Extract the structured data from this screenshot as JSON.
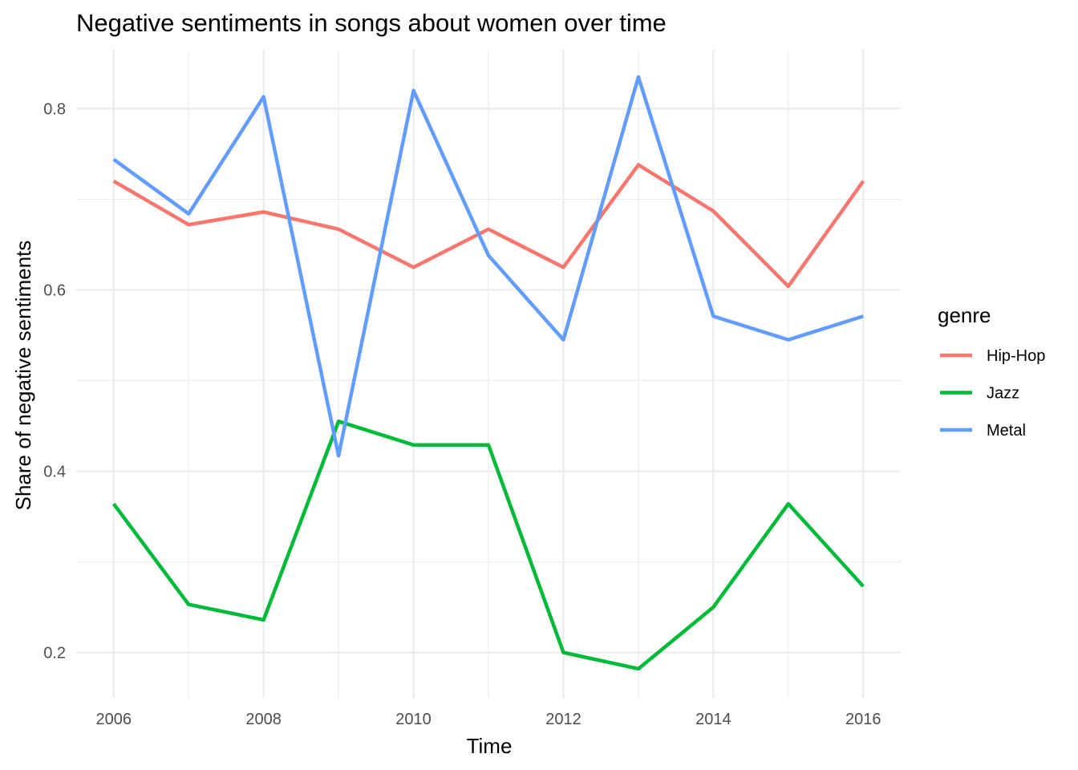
{
  "chart_data": {
    "type": "line",
    "title": "Negative sentiments in songs about women over time",
    "xlabel": "Time",
    "ylabel": "Share of negative sentiments",
    "x": [
      2006,
      2007,
      2008,
      2009,
      2010,
      2011,
      2012,
      2013,
      2014,
      2015,
      2016
    ],
    "xlim": [
      2005.5,
      2016.5
    ],
    "ylim": [
      0.15,
      0.865
    ],
    "x_ticks": [
      2006,
      2008,
      2010,
      2012,
      2014,
      2016
    ],
    "x_tick_labels": [
      "2006",
      "2008",
      "2010",
      "2012",
      "2014",
      "2016"
    ],
    "y_ticks": [
      0.2,
      0.4,
      0.6,
      0.8
    ],
    "y_tick_labels": [
      "0.2",
      "0.4",
      "0.6",
      "0.8"
    ],
    "grid": true,
    "legend": {
      "title": "genre",
      "position": "right"
    },
    "series": [
      {
        "name": "Hip-Hop",
        "color": "#F8766D",
        "values": [
          0.72,
          0.672,
          0.686,
          0.667,
          0.625,
          0.667,
          0.625,
          0.738,
          0.687,
          0.604,
          0.72
        ]
      },
      {
        "name": "Jazz",
        "color": "#00BA38",
        "values": [
          0.364,
          0.253,
          0.236,
          0.455,
          0.429,
          0.429,
          0.2,
          0.182,
          0.25,
          0.364,
          0.273
        ]
      },
      {
        "name": "Metal",
        "color": "#619CFF",
        "values": [
          0.744,
          0.684,
          0.813,
          0.417,
          0.82,
          0.638,
          0.545,
          0.835,
          0.571,
          0.545,
          0.571
        ]
      }
    ]
  }
}
